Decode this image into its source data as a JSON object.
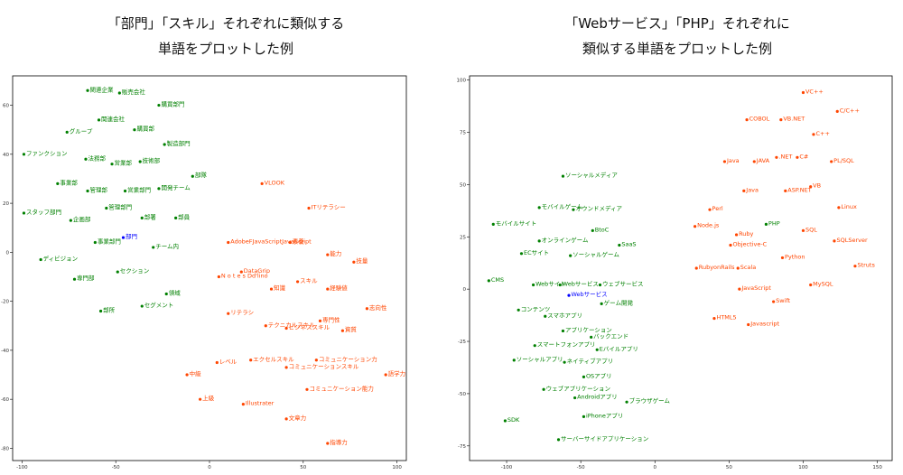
{
  "chart_data": [
    {
      "type": "scatter",
      "title_lines": [
        "「部門」「スキル」それぞれに類似する",
        "単語をプロットした例"
      ],
      "xlim": [
        -105,
        105
      ],
      "ylim": [
        -85,
        72
      ],
      "xticks": [
        -100,
        -50,
        0,
        50,
        100
      ],
      "yticks": [
        60,
        40,
        20,
        0,
        -20,
        -40,
        -60,
        -80
      ],
      "colors": {
        "group_a": "#008000",
        "group_b": "#ff4500",
        "query": "#0000ff"
      },
      "points": [
        {
          "label": "関連企業",
          "x": -65,
          "y": 66,
          "group": "group_a"
        },
        {
          "label": "販売会社",
          "x": -48,
          "y": 65,
          "group": "group_a"
        },
        {
          "label": "購買部門",
          "x": -27,
          "y": 60,
          "group": "group_a"
        },
        {
          "label": "関連会社",
          "x": -59,
          "y": 54,
          "group": "group_a"
        },
        {
          "label": "グループ",
          "x": -76,
          "y": 49,
          "group": "group_a"
        },
        {
          "label": "購買部",
          "x": -40,
          "y": 50,
          "group": "group_a"
        },
        {
          "label": "製造部門",
          "x": -24,
          "y": 44,
          "group": "group_a"
        },
        {
          "label": "ファンクション",
          "x": -99,
          "y": 40,
          "group": "group_a"
        },
        {
          "label": "法務部",
          "x": -66,
          "y": 38,
          "group": "group_a"
        },
        {
          "label": "営業部",
          "x": -52,
          "y": 36,
          "group": "group_a"
        },
        {
          "label": "技術部",
          "x": -37,
          "y": 37,
          "group": "group_a"
        },
        {
          "label": "部隊",
          "x": -9,
          "y": 31,
          "group": "group_a"
        },
        {
          "label": "事業部",
          "x": -81,
          "y": 28,
          "group": "group_a"
        },
        {
          "label": "管理部",
          "x": -65,
          "y": 25,
          "group": "group_a"
        },
        {
          "label": "営業部門",
          "x": -45,
          "y": 25,
          "group": "group_a"
        },
        {
          "label": "開発チーム",
          "x": -27,
          "y": 26,
          "group": "group_a"
        },
        {
          "label": "スタッフ部門",
          "x": -99,
          "y": 16,
          "group": "group_a"
        },
        {
          "label": "管理部門",
          "x": -55,
          "y": 18,
          "group": "group_a"
        },
        {
          "label": "企画部",
          "x": -74,
          "y": 13,
          "group": "group_a"
        },
        {
          "label": "部署",
          "x": -36,
          "y": 14,
          "group": "group_a"
        },
        {
          "label": "部員",
          "x": -18,
          "y": 14,
          "group": "group_a"
        },
        {
          "label": "事業部門",
          "x": -61,
          "y": 4,
          "group": "group_a"
        },
        {
          "label": "部門",
          "x": -46,
          "y": 6,
          "group": "query"
        },
        {
          "label": "チーム内",
          "x": -30,
          "y": 2,
          "group": "group_a"
        },
        {
          "label": "ディビジョン",
          "x": -90,
          "y": -3,
          "group": "group_a"
        },
        {
          "label": "セクション",
          "x": -49,
          "y": -8,
          "group": "group_a"
        },
        {
          "label": "専門部",
          "x": -72,
          "y": -11,
          "group": "group_a"
        },
        {
          "label": "領域",
          "x": -23,
          "y": -17,
          "group": "group_a"
        },
        {
          "label": "部所",
          "x": -58,
          "y": -24,
          "group": "group_a"
        },
        {
          "label": "セグメント",
          "x": -36,
          "y": -22,
          "group": "group_a"
        },
        {
          "label": "VLOOK",
          "x": 28,
          "y": 28,
          "group": "group_b"
        },
        {
          "label": "ITリテラシー",
          "x": 53,
          "y": 18,
          "group": "group_b"
        },
        {
          "label": "AdobeFJavaScriptJavaScript",
          "x": 10,
          "y": 4,
          "group": "group_b"
        },
        {
          "label": "素養",
          "x": 43,
          "y": 4,
          "group": "group_b"
        },
        {
          "label": "能力",
          "x": 63,
          "y": -1,
          "group": "group_b"
        },
        {
          "label": "技量",
          "x": 77,
          "y": -4,
          "group": "group_b"
        },
        {
          "label": "DataGrip",
          "x": 17,
          "y": -8,
          "group": "group_b"
        },
        {
          "label": "N o t e s Dd'lino",
          "x": 5,
          "y": -10,
          "group": "group_b"
        },
        {
          "label": "スキル",
          "x": 47,
          "y": -12,
          "group": "group_b"
        },
        {
          "label": "知識",
          "x": 33,
          "y": -15,
          "group": "group_b"
        },
        {
          "label": "経験値",
          "x": 63,
          "y": -15,
          "group": "group_b"
        },
        {
          "label": "志向性",
          "x": 84,
          "y": -23,
          "group": "group_b"
        },
        {
          "label": "リテラシ",
          "x": 10,
          "y": -25,
          "group": "group_b"
        },
        {
          "label": "専門性",
          "x": 59,
          "y": -28,
          "group": "group_b"
        },
        {
          "label": "テクニカルスキル",
          "x": 30,
          "y": -30,
          "group": "group_b"
        },
        {
          "label": "ビジネススキル",
          "x": 41,
          "y": -31,
          "group": "group_b"
        },
        {
          "label": "資質",
          "x": 71,
          "y": -32,
          "group": "group_b"
        },
        {
          "label": "レベル",
          "x": 4,
          "y": -45,
          "group": "group_b"
        },
        {
          "label": "エクセルスキル",
          "x": 22,
          "y": -44,
          "group": "group_b"
        },
        {
          "label": "コミュニケーション力",
          "x": 57,
          "y": -44,
          "group": "group_b"
        },
        {
          "label": "コミュニケーションスキル",
          "x": 41,
          "y": -47,
          "group": "group_b"
        },
        {
          "label": "中級",
          "x": -12,
          "y": -50,
          "group": "group_b"
        },
        {
          "label": "語学力",
          "x": 94,
          "y": -50,
          "group": "group_b"
        },
        {
          "label": "コミュニケーション能力",
          "x": 52,
          "y": -56,
          "group": "group_b"
        },
        {
          "label": "上級",
          "x": -5,
          "y": -60,
          "group": "group_b"
        },
        {
          "label": "Illustrater",
          "x": 18,
          "y": -62,
          "group": "group_b"
        },
        {
          "label": "文章力",
          "x": 41,
          "y": -68,
          "group": "group_b"
        },
        {
          "label": "指導力",
          "x": 63,
          "y": -78,
          "group": "group_b"
        }
      ]
    },
    {
      "type": "scatter",
      "title_lines": [
        "「Webサービス」「PHP」それぞれに",
        "類似する単語をプロットした例"
      ],
      "xlim": [
        -125,
        160
      ],
      "ylim": [
        -82,
        102
      ],
      "xticks": [
        -100,
        -50,
        0,
        50,
        100,
        150
      ],
      "yticks": [
        100,
        75,
        50,
        25,
        0,
        -25,
        -50,
        -75
      ],
      "colors": {
        "group_a": "#008000",
        "group_b": "#ff4500",
        "query": "#0000ff"
      },
      "points": [
        {
          "label": "VC++",
          "x": 100,
          "y": 94,
          "group": "group_b"
        },
        {
          "label": "C/C++",
          "x": 123,
          "y": 85,
          "group": "group_b"
        },
        {
          "label": "COBOL",
          "x": 62,
          "y": 81,
          "group": "group_b"
        },
        {
          "label": "VB.NET",
          "x": 85,
          "y": 81,
          "group": "group_b"
        },
        {
          "label": "C++",
          "x": 107,
          "y": 74,
          "group": "group_b"
        },
        {
          "label": "Java",
          "x": 47,
          "y": 61,
          "group": "group_b"
        },
        {
          "label": "JAVA",
          "x": 67,
          "y": 61,
          "group": "group_b"
        },
        {
          "label": ".NET",
          "x": 82,
          "y": 63,
          "group": "group_b"
        },
        {
          "label": "C#",
          "x": 96,
          "y": 63,
          "group": "group_b"
        },
        {
          "label": "PL/SQL",
          "x": 119,
          "y": 61,
          "group": "group_b"
        },
        {
          "label": "ソーシャルメディア",
          "x": -62,
          "y": 54,
          "group": "group_a"
        },
        {
          "label": "Java",
          "x": 60,
          "y": 47,
          "group": "group_b"
        },
        {
          "label": "ASP.NET",
          "x": 88,
          "y": 47,
          "group": "group_b"
        },
        {
          "label": "VB",
          "x": 105,
          "y": 49,
          "group": "group_b"
        },
        {
          "label": "Perl",
          "x": 37,
          "y": 38,
          "group": "group_b"
        },
        {
          "label": "Linux",
          "x": 124,
          "y": 39,
          "group": "group_b"
        },
        {
          "label": "モバイルゲーム",
          "x": -78,
          "y": 39,
          "group": "group_a"
        },
        {
          "label": "オウンドメディア",
          "x": -55,
          "y": 38,
          "group": "group_a"
        },
        {
          "label": "モバイルサイト",
          "x": -109,
          "y": 31,
          "group": "group_a"
        },
        {
          "label": "PHP",
          "x": 75,
          "y": 31,
          "group": "group_a"
        },
        {
          "label": "Node.js",
          "x": 27,
          "y": 30,
          "group": "group_b"
        },
        {
          "label": "BtoC",
          "x": -42,
          "y": 28,
          "group": "group_a"
        },
        {
          "label": "SQL",
          "x": 100,
          "y": 28,
          "group": "group_b"
        },
        {
          "label": "Ruby",
          "x": 55,
          "y": 26,
          "group": "group_b"
        },
        {
          "label": "オンラインゲーム",
          "x": -78,
          "y": 23,
          "group": "group_a"
        },
        {
          "label": "SaaS",
          "x": -24,
          "y": 21,
          "group": "group_a"
        },
        {
          "label": "SQLServer",
          "x": 121,
          "y": 23,
          "group": "group_b"
        },
        {
          "label": "Objective-C",
          "x": 51,
          "y": 21,
          "group": "group_b"
        },
        {
          "label": "ECサイト",
          "x": -90,
          "y": 17,
          "group": "group_a"
        },
        {
          "label": "ソーシャルゲーム",
          "x": -57,
          "y": 16,
          "group": "group_a"
        },
        {
          "label": "Python",
          "x": 86,
          "y": 15,
          "group": "group_b"
        },
        {
          "label": "RubyonRails",
          "x": 28,
          "y": 10,
          "group": "group_b"
        },
        {
          "label": "Scala",
          "x": 56,
          "y": 10,
          "group": "group_b"
        },
        {
          "label": "Struts",
          "x": 135,
          "y": 11,
          "group": "group_b"
        },
        {
          "label": "CMS",
          "x": -112,
          "y": 4,
          "group": "group_a"
        },
        {
          "label": "Webサイト",
          "x": -82,
          "y": 2,
          "group": "group_a"
        },
        {
          "label": "Webサービス",
          "x": -64,
          "y": 2,
          "group": "group_a"
        },
        {
          "label": "ウェブサービス",
          "x": -37,
          "y": 2,
          "group": "group_a"
        },
        {
          "label": "MySQL",
          "x": 105,
          "y": 2,
          "group": "group_b"
        },
        {
          "label": "JavaScript",
          "x": 57,
          "y": 0,
          "group": "group_b"
        },
        {
          "label": "Webサービス",
          "x": -58,
          "y": -3,
          "group": "query"
        },
        {
          "label": "ゲーム開発",
          "x": -36,
          "y": -7,
          "group": "group_a"
        },
        {
          "label": "Swift",
          "x": 80,
          "y": -6,
          "group": "group_b"
        },
        {
          "label": "コンテンツ",
          "x": -92,
          "y": -10,
          "group": "group_a"
        },
        {
          "label": "スマホアプリ",
          "x": -74,
          "y": -13,
          "group": "group_a"
        },
        {
          "label": "HTML5",
          "x": 40,
          "y": -14,
          "group": "group_b"
        },
        {
          "label": "Javascript",
          "x": 63,
          "y": -17,
          "group": "group_b"
        },
        {
          "label": "アプリケーション",
          "x": -62,
          "y": -20,
          "group": "group_a"
        },
        {
          "label": "バックエンド",
          "x": -43,
          "y": -23,
          "group": "group_a"
        },
        {
          "label": "スマートフォンアプリ",
          "x": -81,
          "y": -27,
          "group": "group_a"
        },
        {
          "label": "Eバイルアプリ",
          "x": -39,
          "y": -29,
          "group": "group_a"
        },
        {
          "label": "ソーシャルアプリ",
          "x": -95,
          "y": -34,
          "group": "group_a"
        },
        {
          "label": "ネイティブアプリ",
          "x": -61,
          "y": -35,
          "group": "group_a"
        },
        {
          "label": "OSアプリ",
          "x": -48,
          "y": -42,
          "group": "group_a"
        },
        {
          "label": "ウェブアプリケーション",
          "x": -75,
          "y": -48,
          "group": "group_a"
        },
        {
          "label": "Androidアプリ",
          "x": -54,
          "y": -52,
          "group": "group_a"
        },
        {
          "label": "ブラウザゲーム",
          "x": -19,
          "y": -54,
          "group": "group_a"
        },
        {
          "label": "iPhoneアプリ",
          "x": -48,
          "y": -61,
          "group": "group_a"
        },
        {
          "label": "SDK",
          "x": -101,
          "y": -63,
          "group": "group_a"
        },
        {
          "label": "サーバーサイドアプリケーション",
          "x": -65,
          "y": -72,
          "group": "group_a"
        }
      ]
    }
  ]
}
